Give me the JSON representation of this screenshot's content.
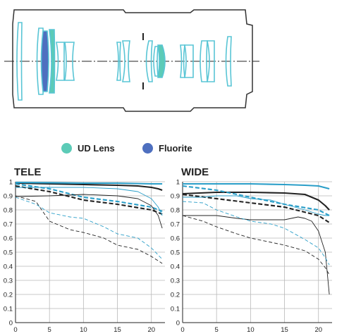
{
  "legend": {
    "ud_label": "UD Lens",
    "fluorite_label": "Fluorite",
    "ud_color": "#5ccbb7",
    "fluorite_color": "#4e6fbf"
  },
  "colors": {
    "barrel_outline": "#333333",
    "lens_element": "#59c5d5",
    "axis_line": "#222222",
    "mtf_black": "#222222",
    "mtf_blue": "#2a9ec8"
  },
  "chart_data": [
    {
      "type": "line",
      "title": "TELE",
      "xlabel": "",
      "ylabel": "",
      "xlim": [
        0,
        22
      ],
      "ylim": [
        0,
        1
      ],
      "x_ticks": [
        0,
        5,
        10,
        15,
        20
      ],
      "y_ticks": [
        0,
        0.1,
        0.2,
        0.3,
        0.4,
        0.5,
        0.6,
        0.7,
        0.8,
        0.9,
        1
      ],
      "grid": true,
      "series": [
        {
          "color": "black",
          "width": "thick",
          "dash": "solid",
          "x": [
            0,
            5,
            10,
            15,
            18,
            20,
            21,
            21.6
          ],
          "y": [
            0.99,
            0.985,
            0.98,
            0.975,
            0.97,
            0.96,
            0.95,
            0.94
          ]
        },
        {
          "color": "blue",
          "width": "thick",
          "dash": "solid",
          "x": [
            0,
            5,
            10,
            15,
            20,
            21.6
          ],
          "y": [
            0.995,
            0.993,
            0.99,
            0.99,
            0.985,
            0.985
          ]
        },
        {
          "color": "black",
          "width": "thick",
          "dash": "dashed",
          "x": [
            0,
            5,
            10,
            15,
            20,
            21.6
          ],
          "y": [
            0.97,
            0.93,
            0.87,
            0.84,
            0.8,
            0.77
          ]
        },
        {
          "color": "blue",
          "width": "thick",
          "dash": "dashed",
          "x": [
            0,
            5,
            10,
            15,
            20,
            21.6
          ],
          "y": [
            0.985,
            0.95,
            0.89,
            0.86,
            0.82,
            0.79
          ]
        },
        {
          "color": "black",
          "width": "thin",
          "dash": "solid",
          "x": [
            0,
            5,
            10,
            15,
            18,
            20,
            21,
            21.6
          ],
          "y": [
            0.895,
            0.9,
            0.91,
            0.9,
            0.88,
            0.83,
            0.76,
            0.67
          ]
        },
        {
          "color": "blue",
          "width": "thin",
          "dash": "solid",
          "x": [
            0,
            5,
            10,
            15,
            18,
            20,
            21,
            21.6
          ],
          "y": [
            0.96,
            0.96,
            0.96,
            0.95,
            0.93,
            0.88,
            0.82,
            0.76
          ]
        },
        {
          "color": "black",
          "width": "thin",
          "dash": "dashed",
          "x": [
            0,
            3,
            5,
            8,
            10,
            13,
            15,
            18,
            20,
            21.6
          ],
          "y": [
            0.9,
            0.86,
            0.72,
            0.66,
            0.64,
            0.6,
            0.55,
            0.52,
            0.47,
            0.42
          ]
        },
        {
          "color": "blue",
          "width": "thin",
          "dash": "dashed",
          "x": [
            0,
            3,
            5,
            8,
            10,
            13,
            15,
            18,
            20,
            21.6
          ],
          "y": [
            0.89,
            0.84,
            0.78,
            0.75,
            0.74,
            0.68,
            0.63,
            0.6,
            0.53,
            0.45
          ]
        }
      ]
    },
    {
      "type": "line",
      "title": "WIDE",
      "xlabel": "",
      "ylabel": "",
      "xlim": [
        0,
        22
      ],
      "ylim": [
        0,
        1
      ],
      "x_ticks": [
        0,
        5,
        10,
        15,
        20
      ],
      "y_ticks": [
        0,
        0.1,
        0.2,
        0.3,
        0.4,
        0.5,
        0.6,
        0.7,
        0.8,
        0.9,
        1
      ],
      "grid": true,
      "series": [
        {
          "color": "blue",
          "width": "thick",
          "dash": "solid",
          "x": [
            0,
            5,
            10,
            15,
            18,
            20,
            21.6
          ],
          "y": [
            0.985,
            0.985,
            0.985,
            0.98,
            0.975,
            0.97,
            0.95
          ]
        },
        {
          "color": "black",
          "width": "thick",
          "dash": "solid",
          "x": [
            0,
            5,
            10,
            15,
            18,
            20,
            21,
            21.6
          ],
          "y": [
            0.915,
            0.925,
            0.925,
            0.92,
            0.91,
            0.87,
            0.83,
            0.8
          ]
        },
        {
          "color": "blue",
          "width": "thick",
          "dash": "dashed",
          "x": [
            0,
            5,
            10,
            15,
            20,
            21.6
          ],
          "y": [
            0.97,
            0.94,
            0.89,
            0.84,
            0.8,
            0.76
          ]
        },
        {
          "color": "black",
          "width": "thick",
          "dash": "dashed",
          "x": [
            0,
            5,
            10,
            15,
            20,
            21.6
          ],
          "y": [
            0.91,
            0.88,
            0.85,
            0.82,
            0.76,
            0.71
          ]
        },
        {
          "color": "blue",
          "width": "thin",
          "dash": "solid",
          "x": [
            0,
            3,
            5,
            8,
            10,
            13,
            15,
            18,
            20,
            21,
            21.6
          ],
          "y": [
            0.89,
            0.89,
            0.9,
            0.9,
            0.88,
            0.87,
            0.84,
            0.8,
            0.77,
            0.76,
            0.76
          ]
        },
        {
          "color": "black",
          "width": "thin",
          "dash": "solid",
          "x": [
            0,
            3,
            5,
            8,
            10,
            13,
            15,
            17,
            18,
            19,
            20,
            21,
            21.6
          ],
          "y": [
            0.76,
            0.76,
            0.76,
            0.74,
            0.73,
            0.73,
            0.73,
            0.75,
            0.74,
            0.72,
            0.65,
            0.5,
            0.2
          ]
        },
        {
          "color": "blue",
          "width": "thin",
          "dash": "dashed",
          "x": [
            0,
            3,
            5,
            8,
            10,
            13,
            15,
            18,
            20,
            21,
            21.6
          ],
          "y": [
            0.86,
            0.85,
            0.8,
            0.75,
            0.72,
            0.7,
            0.67,
            0.59,
            0.53,
            0.46,
            0.41
          ]
        },
        {
          "color": "black",
          "width": "thin",
          "dash": "dashed",
          "x": [
            0,
            3,
            5,
            8,
            10,
            13,
            15,
            18,
            20,
            21,
            21.6
          ],
          "y": [
            0.76,
            0.72,
            0.68,
            0.63,
            0.6,
            0.57,
            0.55,
            0.51,
            0.45,
            0.39,
            0.34
          ]
        }
      ]
    }
  ]
}
